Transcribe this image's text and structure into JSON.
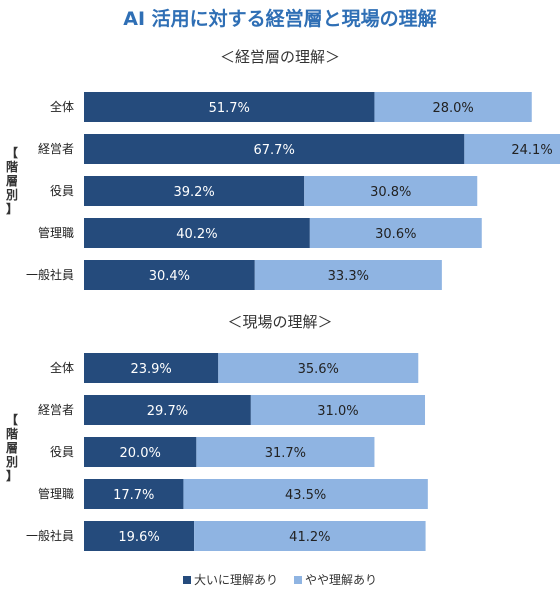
{
  "title": "AI 活用に対する経営層と現場の理解",
  "colors": {
    "high": "#254b7c",
    "some": "#8fb4e2",
    "high_text": "#ffffff",
    "some_text": "#222222",
    "title": "#2f6fb5"
  },
  "chart_data": [
    {
      "type": "bar",
      "orientation": "horizontal",
      "stacked": true,
      "title": "＜経営層の理解＞",
      "group_label": "【階層別】",
      "categories": [
        "全体",
        "経営者",
        "役員",
        "管理職",
        "一般社員"
      ],
      "series": [
        {
          "name": "大いに理解あり",
          "values": [
            51.7,
            67.7,
            39.2,
            40.2,
            30.4
          ],
          "labels": [
            "51.7%",
            "67.7%",
            "39.2%",
            "40.2%",
            "30.4%"
          ]
        },
        {
          "name": "やや理解あり",
          "values": [
            28.0,
            24.1,
            30.8,
            30.6,
            33.3
          ],
          "labels": [
            "28.0%",
            "24.1%",
            "30.8%",
            "30.6%",
            "33.3%"
          ]
        }
      ],
      "xlim": [
        0,
        100
      ]
    },
    {
      "type": "bar",
      "orientation": "horizontal",
      "stacked": true,
      "title": "＜現場の理解＞",
      "group_label": "【階層別】",
      "categories": [
        "全体",
        "経営者",
        "役員",
        "管理職",
        "一般社員"
      ],
      "series": [
        {
          "name": "大いに理解あり",
          "values": [
            23.9,
            29.7,
            20.0,
            17.7,
            19.6
          ],
          "labels": [
            "23.9%",
            "29.7%",
            "20.0%",
            "17.7%",
            "19.6%"
          ]
        },
        {
          "name": "やや理解あり",
          "values": [
            35.6,
            31.0,
            31.7,
            43.5,
            41.2
          ],
          "labels": [
            "35.6%",
            "31.0%",
            "31.7%",
            "43.5%",
            "41.2%"
          ]
        }
      ],
      "xlim": [
        0,
        100
      ]
    }
  ],
  "legend": [
    {
      "name": "大いに理解あり",
      "color": "#254b7c"
    },
    {
      "name": "やや理解あり",
      "color": "#8fb4e2"
    }
  ]
}
